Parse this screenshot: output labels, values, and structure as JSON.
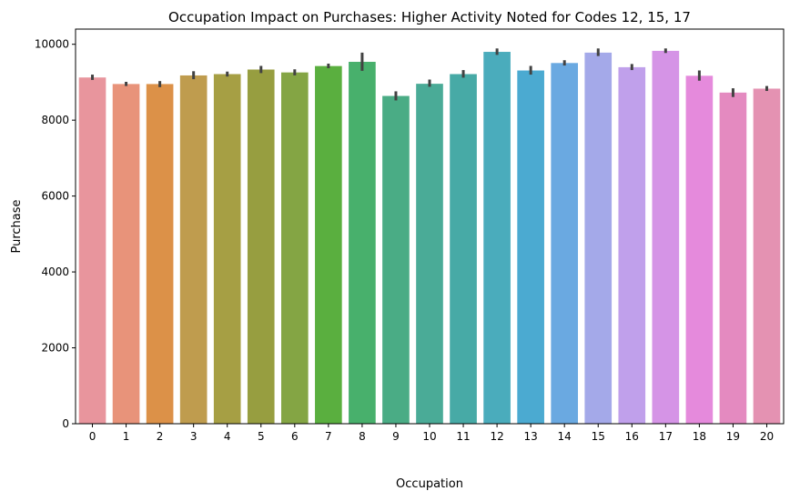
{
  "chart_data": {
    "type": "bar",
    "title": "Occupation Impact on Purchases: Higher Activity Noted for Codes 12, 15, 17",
    "xlabel": "Occupation",
    "ylabel": "Purchase",
    "ylim": [
      0,
      10400
    ],
    "yticks": [
      0,
      2000,
      4000,
      6000,
      8000,
      10000
    ],
    "grid": false,
    "legend": "none",
    "categories": [
      "0",
      "1",
      "2",
      "3",
      "4",
      "5",
      "6",
      "7",
      "8",
      "9",
      "10",
      "11",
      "12",
      "13",
      "14",
      "15",
      "16",
      "17",
      "18",
      "19",
      "20"
    ],
    "values": [
      9125,
      8953,
      8952,
      9179,
      9214,
      9334,
      9258,
      9426,
      9537,
      8638,
      8959,
      9214,
      9800,
      9309,
      9506,
      9780,
      9396,
      9827,
      9170,
      8727,
      8831
    ],
    "error_low": [
      9060,
      8900,
      8870,
      9080,
      9150,
      9240,
      9180,
      9370,
      9300,
      8520,
      8880,
      9120,
      9720,
      9200,
      9440,
      9690,
      9320,
      9770,
      9040,
      8610,
      8770
    ],
    "error_high": [
      9200,
      9010,
      9030,
      9290,
      9280,
      9430,
      9340,
      9490,
      9780,
      8760,
      9070,
      9320,
      9890,
      9430,
      9580,
      9890,
      9480,
      9890,
      9310,
      8840,
      8900
    ],
    "colors": [
      "#e8959d",
      "#e8937a",
      "#dc9148",
      "#bf9c4e",
      "#a69f44",
      "#979e40",
      "#84a544",
      "#5aaf3f",
      "#48b06c",
      "#4aac85",
      "#4aab97",
      "#47aaa6",
      "#4aacbc",
      "#4baad1",
      "#6aa9e1",
      "#a4a9e9",
      "#c0a0eb",
      "#d594e6",
      "#e58adc",
      "#e48ac0",
      "#e492b2"
    ],
    "error_color": "#424242"
  }
}
